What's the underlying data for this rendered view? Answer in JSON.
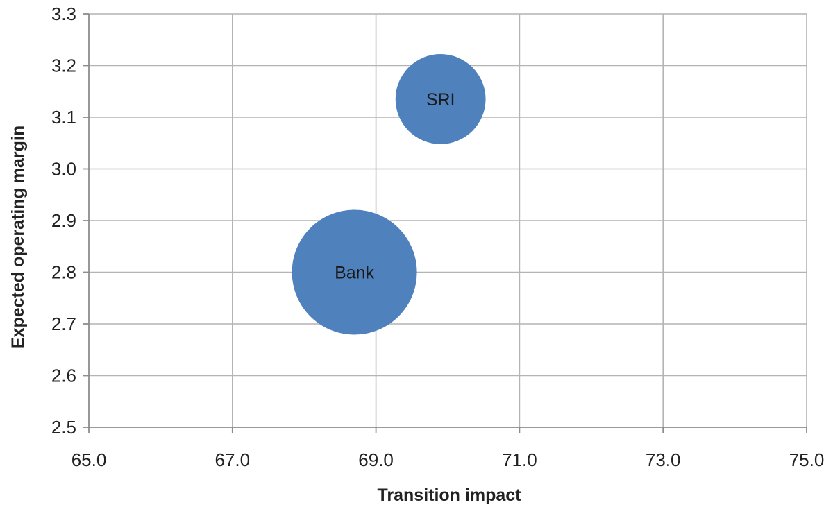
{
  "chart_data": {
    "type": "scatter",
    "variant": "bubble",
    "title": "",
    "xlabel": "Transition impact",
    "ylabel": "Expected operating margin",
    "xlim": [
      65.0,
      75.0
    ],
    "ylim": [
      2.5,
      3.3
    ],
    "x_ticks": [
      "65.0",
      "67.0",
      "69.0",
      "71.0",
      "73.0",
      "75.0"
    ],
    "x_tick_values": [
      65,
      67,
      69,
      71,
      73,
      75
    ],
    "y_ticks": [
      "2.5",
      "2.6",
      "2.7",
      "2.8",
      "2.9",
      "3.0",
      "3.1",
      "3.2",
      "3.3"
    ],
    "y_tick_values": [
      2.5,
      2.6,
      2.7,
      2.8,
      2.9,
      3.0,
      3.1,
      3.2,
      3.3
    ],
    "grid": true,
    "legend": "none",
    "bubble_color": "#4f81bd",
    "points": [
      {
        "label": "SRI",
        "x": 69.9,
        "y": 3.135,
        "relative_size": 0.52
      },
      {
        "label": "Bank",
        "x": 68.7,
        "y": 2.8,
        "relative_size": 1.0
      }
    ]
  }
}
